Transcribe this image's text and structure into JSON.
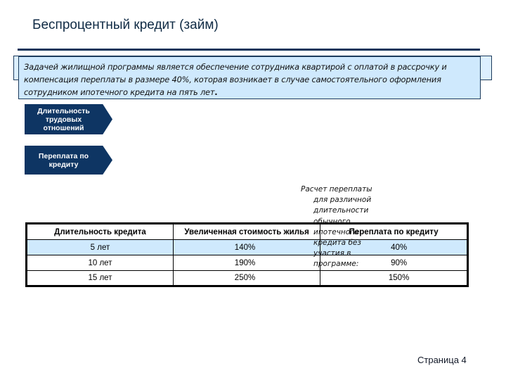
{
  "slide": {
    "title": "Беспроцентный кредит (займ)",
    "page_label": "Страница 4"
  },
  "note": {
    "line1": "Задачей  жилищной  программы является обеспечение сотрудника квартирой с оплатой в рассрочку и",
    "line2": "компенсация переплаты в размере 40%, которая возникает в случае самостоятельного оформления",
    "line3": "сотрудником ипотечного кредита на пять лет",
    "line3_end": "."
  },
  "arrows": [
    {
      "label": "Длительность трудовых отношений"
    },
    {
      "label": "Переплата по кредиту"
    }
  ],
  "calc_note": {
    "lines": [
      "Расчет переплаты",
      "для различной",
      "длительности",
      "обычного",
      "ипотечного",
      "кредита без",
      "участия в",
      "программе:"
    ]
  },
  "table": {
    "headers": [
      "Длительность кредита",
      "Увеличенная стоимость жилья",
      "Переплата по кредиту"
    ],
    "rows": [
      {
        "duration": "5 лет",
        "cost": "140%",
        "overpay": "40%"
      },
      {
        "duration": "10 лет",
        "cost": "190%",
        "overpay": "90%"
      },
      {
        "duration": "15 лет",
        "cost": "250%",
        "overpay": "150%"
      }
    ]
  },
  "colors": {
    "accent_dark": "#0e3563",
    "highlight": "#cfe9fd",
    "rule": "#12355b"
  }
}
